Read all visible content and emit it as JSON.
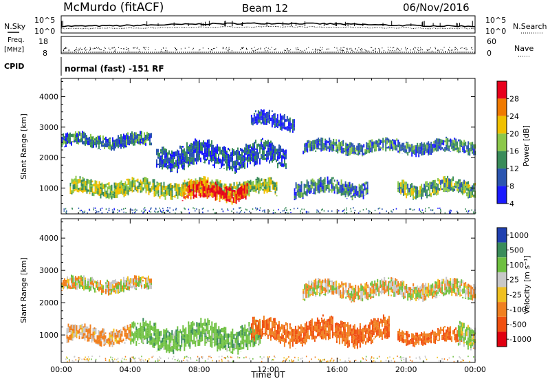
{
  "header": {
    "station": "McMurdo (fitACF)",
    "beam": "Beam 12",
    "date": "06/Nov/2016"
  },
  "summary_panels": {
    "noise": {
      "left_label": "N.Sky",
      "right_label": "N.Search",
      "left_ticks": [
        "10^5",
        "10^0"
      ],
      "right_ticks": [
        "10^5",
        "10^0"
      ]
    },
    "freq": {
      "left_label_line1": "Freq.",
      "left_label_line2": "[MHz]",
      "right_label": "Nave",
      "left_ticks": [
        "18",
        "8"
      ],
      "right_ticks": [
        "60",
        "0"
      ]
    },
    "cpid": {
      "label": "CPID",
      "text": "normal (fast) -151 RF"
    }
  },
  "power_colorbar": {
    "label": "Power [dB]",
    "ticks": [
      "28",
      "24",
      "20",
      "16",
      "12",
      "8",
      "4"
    ],
    "colors": [
      "#e8001c",
      "#f07a00",
      "#f0c000",
      "#8cc84a",
      "#3a8c5a",
      "#2b55b0",
      "#1a1aff"
    ]
  },
  "velocity_colorbar": {
    "label": "Velocity [m s⁻¹]",
    "ticks": [
      "1000",
      "500",
      "100",
      "25",
      "-25",
      "-100",
      "-500",
      "-1000"
    ],
    "colors": [
      "#2040b0",
      "#3a8c5a",
      "#6ec040",
      "#c8c8c8",
      "#f0c020",
      "#f08020",
      "#f05010",
      "#e00010"
    ]
  },
  "chart_data": [
    {
      "type": "heatmap",
      "panel": "power",
      "ylabel": "Slant Range [km]",
      "xlabel": "Time UT",
      "ylim": [
        150,
        4600
      ],
      "xlim": [
        "00:00",
        "24:00"
      ],
      "yticks": [
        "1000",
        "2000",
        "3000",
        "4000"
      ],
      "xticks": [
        "00:00",
        "04:00",
        "08:00",
        "12:00",
        "16:00",
        "20:00",
        "00:00"
      ],
      "bands": [
        {
          "t_start": 0.0,
          "t_end": 5.2,
          "range_low": 2300,
          "range_high": 2800,
          "mean_power_db": 10
        },
        {
          "t_start": 0.5,
          "t_end": 12.5,
          "range_low": 700,
          "range_high": 1300,
          "mean_power_db": 16
        },
        {
          "t_start": 7.0,
          "t_end": 10.8,
          "range_low": 550,
          "range_high": 1200,
          "mean_power_db": 26
        },
        {
          "t_start": 5.5,
          "t_end": 13.0,
          "range_low": 1600,
          "range_high": 2500,
          "mean_power_db": 8
        },
        {
          "t_start": 11.0,
          "t_end": 13.5,
          "range_low": 2900,
          "range_high": 3500,
          "mean_power_db": 6
        },
        {
          "t_start": 13.5,
          "t_end": 17.8,
          "range_low": 700,
          "range_high": 1300,
          "mean_power_db": 10
        },
        {
          "t_start": 14.0,
          "t_end": 24.0,
          "range_low": 2100,
          "range_high": 2600,
          "mean_power_db": 10
        },
        {
          "t_start": 19.5,
          "t_end": 24.0,
          "range_low": 700,
          "range_high": 1300,
          "mean_power_db": 14
        }
      ]
    },
    {
      "type": "heatmap",
      "panel": "velocity",
      "ylabel": "Slant Range [km]",
      "xlabel": "Time UT",
      "ylim": [
        150,
        4600
      ],
      "xlim": [
        "00:00",
        "24:00"
      ],
      "yticks": [
        "1000",
        "2000",
        "3000",
        "4000"
      ],
      "xticks": [
        "00:00",
        "04:00",
        "08:00",
        "12:00",
        "16:00",
        "20:00",
        "00:00"
      ],
      "bands": [
        {
          "t_start": 0.0,
          "t_end": 5.2,
          "range_low": 2300,
          "range_high": 2800,
          "mean_velocity": 0
        },
        {
          "t_start": 4.0,
          "t_end": 11.5,
          "range_low": 500,
          "range_high": 1400,
          "mean_velocity": 200
        },
        {
          "t_start": 0.3,
          "t_end": 4.0,
          "range_low": 700,
          "range_high": 1300,
          "mean_velocity": -100
        },
        {
          "t_start": 11.0,
          "t_end": 19.0,
          "range_low": 700,
          "range_high": 1500,
          "mean_velocity": -300
        },
        {
          "t_start": 14.0,
          "t_end": 24.0,
          "range_low": 2100,
          "range_high": 2700,
          "mean_velocity": 0
        },
        {
          "t_start": 19.5,
          "t_end": 23.2,
          "range_low": 700,
          "range_high": 1200,
          "mean_velocity": -300
        },
        {
          "t_start": 23.0,
          "t_end": 24.0,
          "range_low": 600,
          "range_high": 1400,
          "mean_velocity": 80
        }
      ]
    }
  ]
}
